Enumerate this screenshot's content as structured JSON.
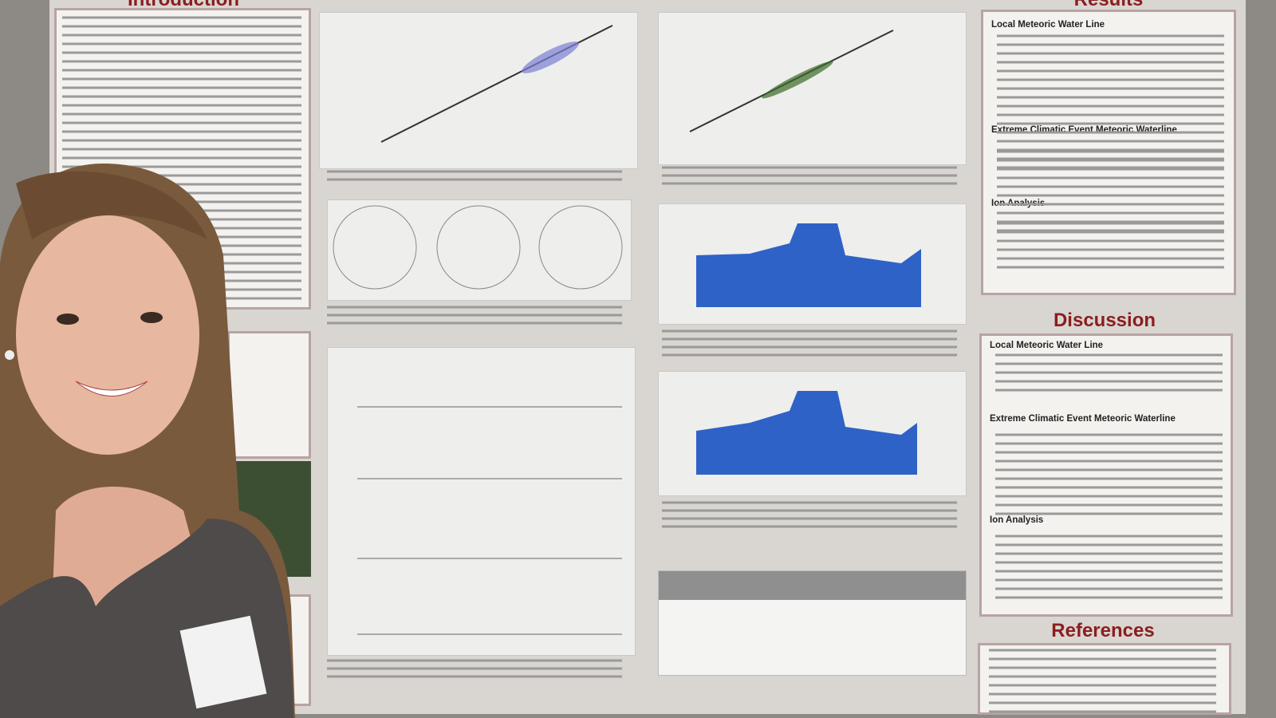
{
  "poster": {
    "introduction": {
      "heading": "Introduction"
    },
    "results": {
      "heading": "Results",
      "subheadings": [
        "Local Meteoric Water Line",
        "Extreme Climatic Event Meteoric Waterline",
        "Ion Analysis"
      ]
    },
    "discussion": {
      "heading": "Discussion",
      "subheadings": [
        "Local Meteoric Water Line",
        "Extreme Climatic Event Meteoric Waterline",
        "Ion Analysis"
      ]
    },
    "references": {
      "heading": "References"
    }
  }
}
